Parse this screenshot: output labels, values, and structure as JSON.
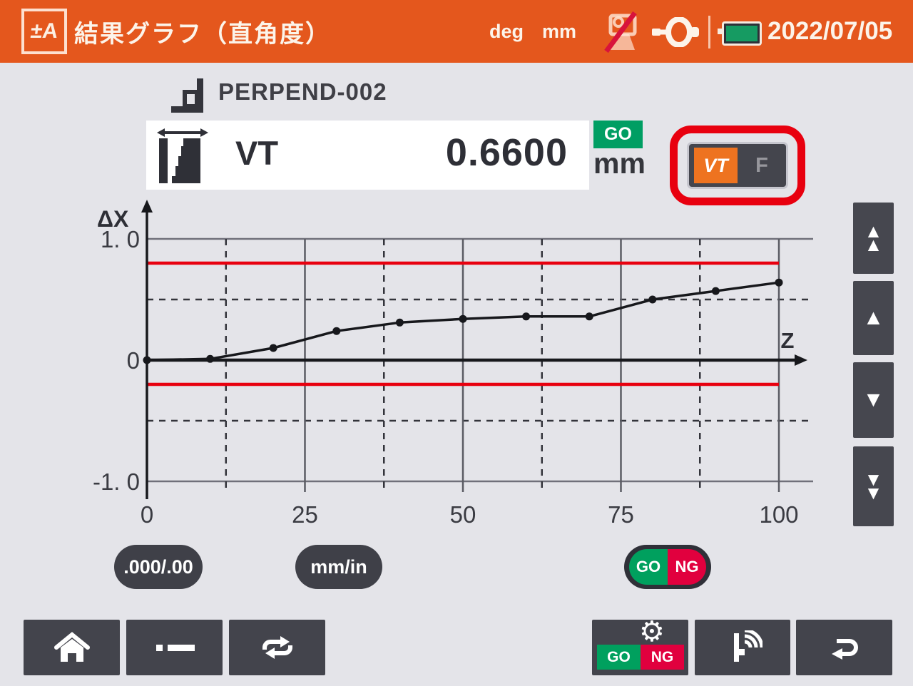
{
  "header": {
    "logo_glyph": "±A",
    "title": "結果グラフ（直角度）",
    "angle_unit": "deg",
    "length_unit": "mm",
    "date": "2022/07/05"
  },
  "item": {
    "name": "PERPEND-002",
    "characteristic": "VT",
    "value": "0.6600",
    "judgement": "GO",
    "unit": "mm",
    "view_toggle": {
      "selected": "VT",
      "alternative": "F"
    }
  },
  "chart_data": {
    "type": "line",
    "title": "結果グラフ（直角度）",
    "xlabel": "Z",
    "ylabel": "ΔX",
    "x": [
      0,
      10,
      20,
      30,
      40,
      50,
      60,
      70,
      80,
      90,
      100
    ],
    "values": [
      0,
      0.01,
      0.1,
      0.24,
      0.31,
      0.34,
      0.36,
      0.36,
      0.5,
      0.57,
      0.64
    ],
    "xlim": [
      0,
      100
    ],
    "ylim": [
      -1.0,
      1.0
    ],
    "x_ticks": [
      0,
      25,
      50,
      75,
      100
    ],
    "x_tick_labels": [
      "0",
      "25",
      "50",
      "75",
      "100"
    ],
    "y_ticks": [
      1.0,
      0,
      -1.0
    ],
    "y_tick_labels": [
      "1. 0",
      "0",
      "-1. 0"
    ],
    "solid_h_gridlines": [
      1.0,
      -1.0
    ],
    "dashed_h_gridlines": [
      0.5,
      -0.5
    ],
    "solid_v_gridlines": [
      25,
      50,
      75,
      100
    ],
    "dashed_v_gridlines": [
      12.5,
      37.5,
      62.5,
      87.5
    ],
    "upper_tolerance": 0.8,
    "lower_tolerance": -0.2,
    "grid": true,
    "legend": false
  },
  "controls": {
    "scroll_buttons": [
      "double-up",
      "up",
      "down",
      "double-down"
    ],
    "decimal_toggle": ".000/.00",
    "unit_toggle": "mm/in",
    "go_label": "GO",
    "ng_label": "NG"
  },
  "colors": {
    "header_bg": "#E4571D",
    "page_bg": "#E4E4E9",
    "button_bg": "#43444C",
    "go_green": "#00A05E",
    "ng_red": "#E1003E",
    "tolerance_red": "#E8000F",
    "accent_orange": "#EE7320",
    "line_color": "#17181C",
    "battery_green": "#169B62"
  }
}
